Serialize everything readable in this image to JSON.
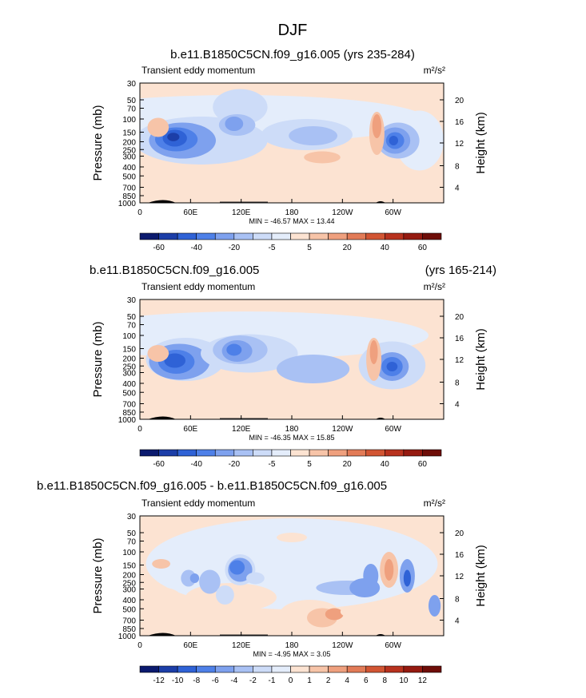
{
  "page_title": "DJF",
  "colorbar_colors": [
    "#0b1a6e",
    "#1c3ea8",
    "#2f62d6",
    "#4e80e8",
    "#7ea1ee",
    "#a9c1f4",
    "#cddcf8",
    "#e4edfb",
    "#fce3d2",
    "#f7c4a8",
    "#efa07e",
    "#e27b57",
    "#d25533",
    "#b8321e",
    "#951a10",
    "#6e0d08"
  ],
  "chart_data": [
    {
      "type": "heatmap",
      "title": "b.e11.B1850C5CN.f09_g16.005 (yrs 235-284)",
      "title_right": "",
      "subtitle_left": "Transient eddy momentum",
      "units": "m²/s²",
      "xlabel": "",
      "ylabel": "Pressure (mb)",
      "ylabel_right": "Height (km)",
      "x_ticks": [
        "0",
        "60E",
        "120E",
        "180",
        "120W",
        "60W"
      ],
      "y_ticks": [
        "30",
        "50",
        "70",
        "100",
        "150",
        "200",
        "250",
        "300",
        "400",
        "500",
        "700",
        "850",
        "1000"
      ],
      "right_ticks": [
        "20",
        "16",
        "12",
        "8",
        "4"
      ],
      "min_max_label": "MIN = -46.57   MAX =  13.44",
      "colorbar_labels": [
        "-60",
        "-40",
        "-20",
        "-5",
        "5",
        "20",
        "40",
        "60"
      ]
    },
    {
      "type": "heatmap",
      "title": "b.e11.B1850C5CN.f09_g16.005",
      "title_right": "(yrs 165-214)",
      "subtitle_left": "Transient eddy momentum",
      "units": "m²/s²",
      "xlabel": "",
      "ylabel": "Pressure (mb)",
      "ylabel_right": "Height (km)",
      "x_ticks": [
        "0",
        "60E",
        "120E",
        "180",
        "120W",
        "60W"
      ],
      "y_ticks": [
        "30",
        "50",
        "70",
        "100",
        "150",
        "200",
        "250",
        "300",
        "400",
        "500",
        "700",
        "850",
        "1000"
      ],
      "right_ticks": [
        "20",
        "16",
        "12",
        "8",
        "4"
      ],
      "min_max_label": "MIN = -46.35   MAX =  15.85",
      "colorbar_labels": [
        "-60",
        "-40",
        "-20",
        "-5",
        "5",
        "20",
        "40",
        "60"
      ]
    },
    {
      "type": "heatmap",
      "title": "b.e11.B1850C5CN.f09_g16.005 - b.e11.B1850C5CN.f09_g16.005",
      "title_right": "",
      "subtitle_left": "Transient eddy momentum",
      "units": "m²/s²",
      "xlabel": "",
      "ylabel": "Pressure (mb)",
      "ylabel_right": "Height (km)",
      "x_ticks": [
        "0",
        "60E",
        "120E",
        "180",
        "120W",
        "60W"
      ],
      "y_ticks": [
        "30",
        "50",
        "70",
        "100",
        "150",
        "200",
        "250",
        "300",
        "400",
        "500",
        "700",
        "850",
        "1000"
      ],
      "right_ticks": [
        "20",
        "16",
        "12",
        "8",
        "4"
      ],
      "min_max_label": "MIN = -4.95   MAX =  3.05",
      "colorbar_labels": [
        "-12",
        "-10",
        "-8",
        "-6",
        "-4",
        "-2",
        "-1",
        "0",
        "1",
        "2",
        "4",
        "6",
        "8",
        "10",
        "12"
      ]
    }
  ]
}
